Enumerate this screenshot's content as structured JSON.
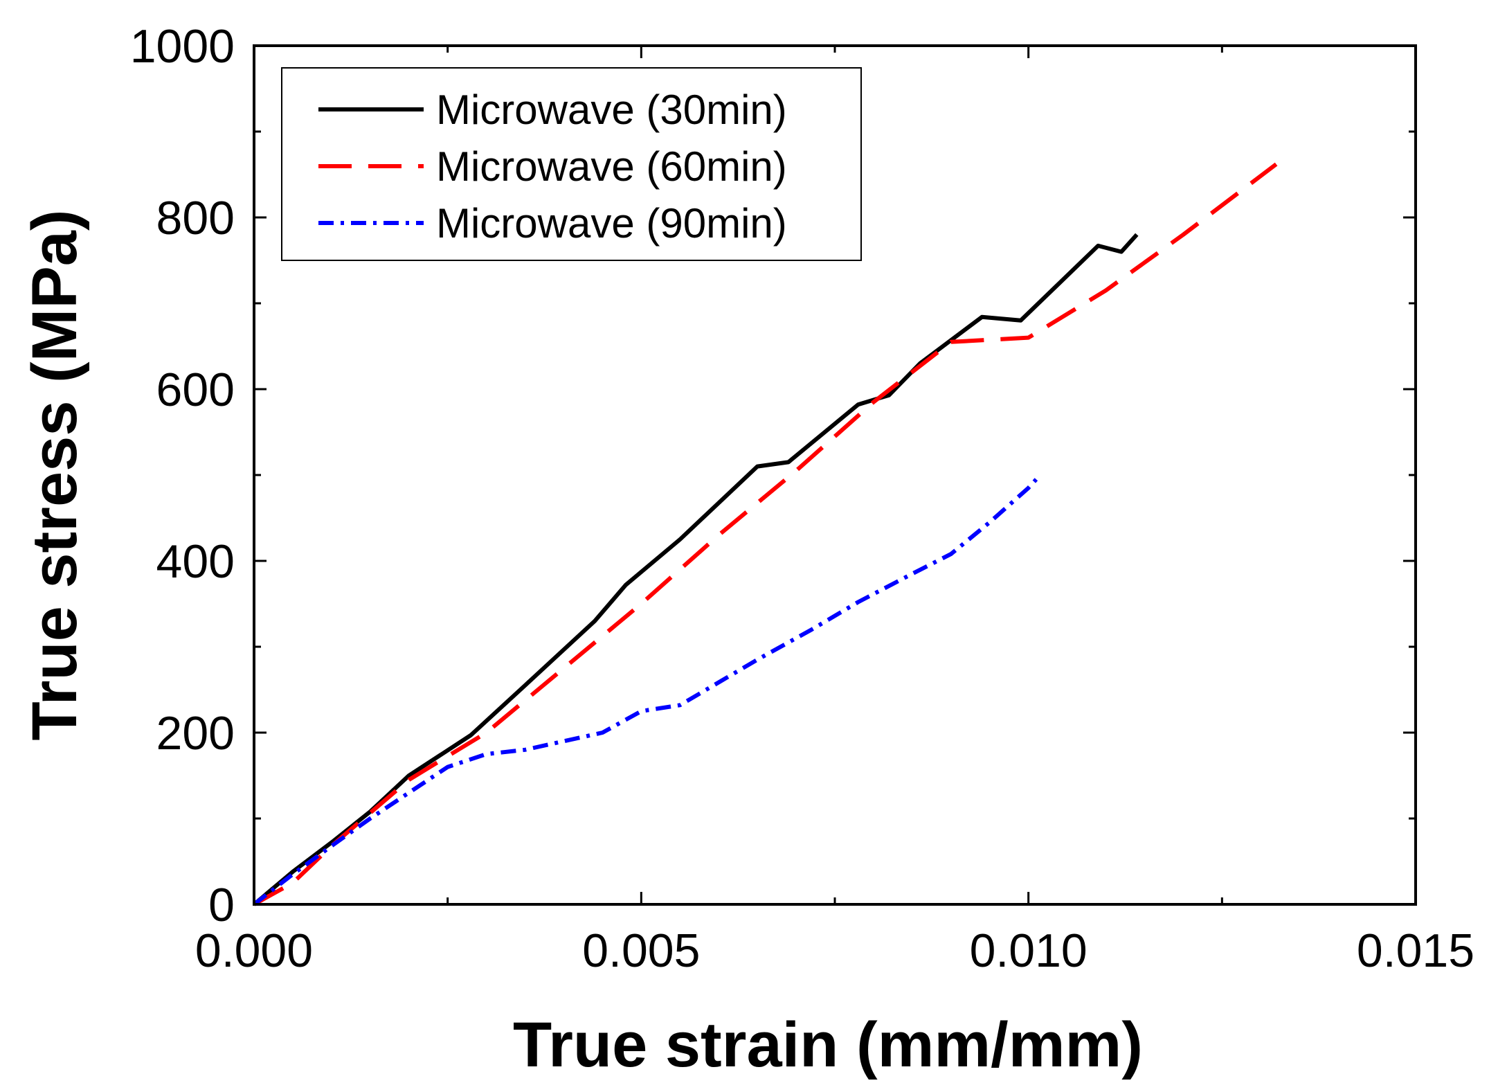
{
  "chart_data": {
    "type": "line",
    "title": "",
    "xlabel": "True strain (mm/mm)",
    "ylabel": "True stress (MPa)",
    "xlim": [
      0,
      0.015
    ],
    "ylim": [
      0,
      1000
    ],
    "x_ticks": [
      0,
      0.005,
      0.01,
      0.015
    ],
    "x_tick_labels": [
      "0.000",
      "0.005",
      "0.010",
      "0.015"
    ],
    "y_ticks": [
      0,
      200,
      400,
      600,
      800,
      1000
    ],
    "y_tick_labels": [
      "0",
      "200",
      "400",
      "600",
      "800",
      "1000"
    ],
    "grid": false,
    "legend_position": "top-left",
    "series": [
      {
        "name": "Microwave (30min)",
        "color": "#000000",
        "dash": "solid",
        "points": [
          [
            0,
            0
          ],
          [
            0.0005,
            38
          ],
          [
            0.001,
            72
          ],
          [
            0.0015,
            108
          ],
          [
            0.002,
            150
          ],
          [
            0.0028,
            197
          ],
          [
            0.0035,
            255
          ],
          [
            0.0044,
            330
          ],
          [
            0.0048,
            372
          ],
          [
            0.0055,
            425
          ],
          [
            0.0065,
            510
          ],
          [
            0.0069,
            515
          ],
          [
            0.0078,
            582
          ],
          [
            0.0082,
            593
          ],
          [
            0.0086,
            630
          ],
          [
            0.0094,
            684
          ],
          [
            0.0099,
            680
          ],
          [
            0.0109,
            767
          ],
          [
            0.0112,
            760
          ],
          [
            0.0114,
            780
          ]
        ]
      },
      {
        "name": "Microwave (60min)",
        "color": "#ff0000",
        "dash": "dashed",
        "points": [
          [
            0,
            0
          ],
          [
            0.0005,
            25
          ],
          [
            0.001,
            68
          ],
          [
            0.002,
            145
          ],
          [
            0.003,
            200
          ],
          [
            0.004,
            275
          ],
          [
            0.005,
            350
          ],
          [
            0.006,
            430
          ],
          [
            0.007,
            505
          ],
          [
            0.008,
            585
          ],
          [
            0.009,
            655
          ],
          [
            0.01,
            660
          ],
          [
            0.011,
            715
          ],
          [
            0.012,
            780
          ],
          [
            0.0132,
            862
          ]
        ]
      },
      {
        "name": "Microwave (90min)",
        "color": "#0000ff",
        "dash": "dash-dot",
        "points": [
          [
            0,
            0
          ],
          [
            0.0005,
            35
          ],
          [
            0.001,
            68
          ],
          [
            0.0015,
            100
          ],
          [
            0.002,
            130
          ],
          [
            0.0025,
            160
          ],
          [
            0.003,
            175
          ],
          [
            0.0035,
            180
          ],
          [
            0.0045,
            200
          ],
          [
            0.005,
            225
          ],
          [
            0.0055,
            232
          ],
          [
            0.0065,
            285
          ],
          [
            0.0072,
            320
          ],
          [
            0.0078,
            352
          ],
          [
            0.0085,
            385
          ],
          [
            0.009,
            408
          ],
          [
            0.0095,
            445
          ],
          [
            0.01,
            485
          ],
          [
            0.0101,
            495
          ]
        ]
      }
    ]
  }
}
